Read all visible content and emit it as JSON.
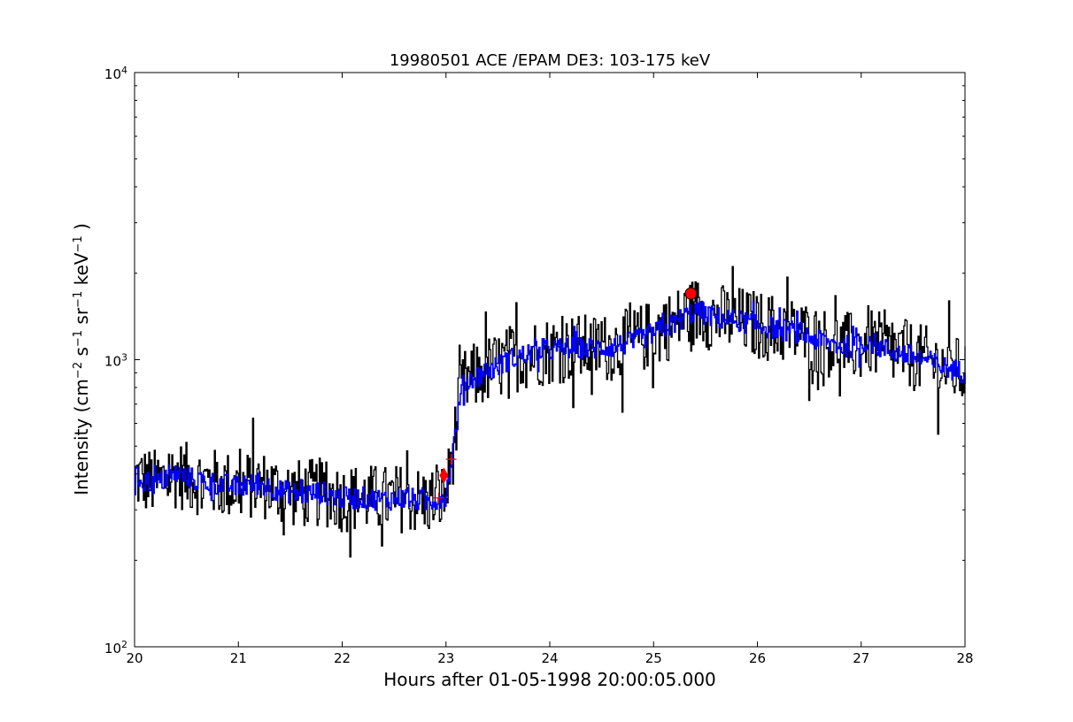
{
  "chart_data": {
    "type": "line",
    "title": "19980501 ACE /EPAM DE3: 103-175 keV",
    "xlabel": "Hours after 01-05-1998 20:00:05.000",
    "ylabel_parts": {
      "prefix": "Intensity (cm",
      "e1": "−2",
      "s": " s",
      "e2": "−1",
      "sr": " sr",
      "e3": "−1",
      "kev": " keV",
      "e4": "−1",
      "suffix": " )"
    },
    "xlim": [
      20,
      28
    ],
    "ylim": [
      100,
      10000
    ],
    "yscale": "log",
    "x_ticks": [
      "20",
      "21",
      "22",
      "23",
      "24",
      "25",
      "26",
      "27",
      "28"
    ],
    "y_ticks": [
      {
        "value": 100,
        "base": "10",
        "exp": "2"
      },
      {
        "value": 1000,
        "base": "10",
        "exp": "3"
      },
      {
        "value": 10000,
        "base": "10",
        "exp": "4"
      }
    ],
    "grid": false,
    "colors": {
      "raw": "#000000",
      "smoothed": "#0000ff",
      "markers": "#ff0000"
    },
    "series": [
      {
        "key": "raw",
        "style": "steps",
        "x": [
          20.0,
          20.2,
          20.4,
          20.6,
          20.8,
          21.0,
          21.2,
          21.4,
          21.6,
          21.8,
          22.0,
          22.2,
          22.4,
          22.6,
          22.8,
          22.95,
          23.0,
          23.05,
          23.1,
          23.15,
          23.2,
          23.3,
          23.4,
          23.5,
          23.6,
          23.8,
          24.0,
          24.2,
          24.4,
          24.6,
          24.8,
          25.0,
          25.2,
          25.3,
          25.4,
          25.6,
          25.8,
          26.0,
          26.2,
          26.4,
          26.6,
          26.8,
          27.0,
          27.05,
          27.2,
          27.4,
          27.6,
          27.8,
          28.0
        ],
        "y": [
          390,
          370,
          400,
          380,
          370,
          360,
          370,
          350,
          340,
          345,
          330,
          330,
          325,
          330,
          320,
          330,
          340,
          450,
          600,
          800,
          840,
          880,
          920,
          950,
          1000,
          1050,
          1080,
          1100,
          1090,
          1110,
          1150,
          1240,
          1340,
          1420,
          1480,
          1400,
          1370,
          1320,
          1280,
          1240,
          1160,
          1120,
          1100,
          1180,
          1090,
          1050,
          1000,
          940,
          900
        ],
        "noise": 0.28
      },
      {
        "key": "smoothed",
        "style": "steps",
        "x": [
          20.0,
          20.2,
          20.4,
          20.6,
          20.8,
          21.0,
          21.2,
          21.4,
          21.6,
          21.8,
          22.0,
          22.2,
          22.4,
          22.6,
          22.8,
          22.95,
          23.0,
          23.05,
          23.1,
          23.15,
          23.2,
          23.3,
          23.4,
          23.5,
          23.6,
          23.8,
          24.0,
          24.2,
          24.4,
          24.6,
          24.8,
          25.0,
          25.2,
          25.3,
          25.4,
          25.6,
          25.8,
          26.0,
          26.2,
          26.4,
          26.6,
          26.8,
          27.0,
          27.05,
          27.2,
          27.4,
          27.6,
          27.8,
          28.0
        ],
        "y": [
          390,
          370,
          400,
          380,
          370,
          360,
          370,
          350,
          340,
          345,
          330,
          330,
          325,
          330,
          320,
          330,
          340,
          450,
          600,
          800,
          840,
          880,
          920,
          950,
          1000,
          1050,
          1080,
          1100,
          1090,
          1110,
          1150,
          1240,
          1340,
          1420,
          1480,
          1400,
          1370,
          1320,
          1280,
          1240,
          1160,
          1120,
          1100,
          1180,
          1090,
          1050,
          1000,
          940,
          900
        ],
        "noise": 0.09
      }
    ],
    "markers": [
      {
        "shape": "plus",
        "x": 22.93,
        "y": 330
      },
      {
        "shape": "diamond",
        "x": 22.98,
        "y": 395
      },
      {
        "shape": "plus",
        "x": 23.05,
        "y": 450
      },
      {
        "shape": "circle",
        "x": 25.36,
        "y": 1700
      }
    ]
  }
}
